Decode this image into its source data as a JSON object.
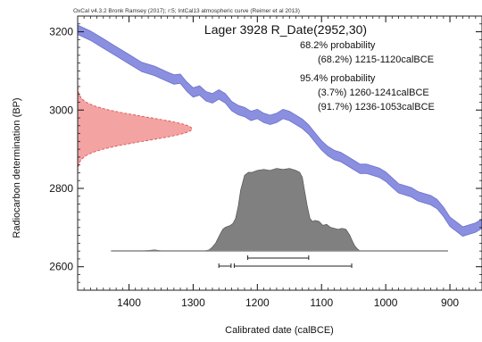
{
  "header": "OxCal v4.3.2 Bronk Ramsey (2017); r:5; IntCal13 atmospheric curve (Reimer et al 2013)",
  "chart_data": {
    "type": "area",
    "title": "Lager 3928 R_Date(2952,30)",
    "xlabel": "Calibrated date (calBCE)",
    "ylabel": "Radiocarbon determination (BP)",
    "xlim": [
      1480,
      850
    ],
    "ylim": [
      2540,
      3240
    ],
    "xticks": [
      1400,
      1300,
      1200,
      1100,
      1000,
      900
    ],
    "xtick_labels": [
      "1400",
      "1300",
      "1200",
      "1100",
      "1000",
      "900"
    ],
    "yticks": [
      2600,
      2800,
      3000,
      3200
    ],
    "ytick_labels": [
      "2600",
      "2800",
      "3000",
      "3200"
    ],
    "probability_text": [
      "68.2% probability",
      "(68.2%) 1215-1120calBCE",
      "95.4% probability",
      "(3.7%) 1260-1241calBCE",
      "(91.7%) 1236-1053calBCE"
    ],
    "ranges_68": [
      [
        1215,
        1120
      ]
    ],
    "ranges_95": [
      [
        1260,
        1241
      ],
      [
        1236,
        1053
      ]
    ],
    "radiocarbon_date": {
      "mean": 2952,
      "sd": 30
    },
    "calibration_curve": {
      "name": "IntCal13",
      "x": [
        1480,
        1460,
        1440,
        1420,
        1400,
        1380,
        1360,
        1340,
        1330,
        1320,
        1310,
        1300,
        1290,
        1280,
        1270,
        1260,
        1250,
        1240,
        1230,
        1220,
        1210,
        1200,
        1190,
        1180,
        1170,
        1160,
        1150,
        1140,
        1130,
        1120,
        1110,
        1100,
        1090,
        1080,
        1070,
        1060,
        1050,
        1040,
        1030,
        1020,
        1010,
        1000,
        990,
        980,
        970,
        960,
        950,
        940,
        930,
        920,
        910,
        900,
        880,
        860,
        850
      ],
      "y": [
        3205,
        3190,
        3170,
        3150,
        3130,
        3110,
        3100,
        3085,
        3078,
        3080,
        3060,
        3045,
        3050,
        3035,
        3030,
        3040,
        3030,
        3010,
        3000,
        2995,
        2985,
        2990,
        2980,
        2975,
        2980,
        2990,
        2985,
        2975,
        2965,
        2950,
        2930,
        2910,
        2895,
        2885,
        2880,
        2870,
        2860,
        2850,
        2850,
        2845,
        2840,
        2830,
        2815,
        2800,
        2795,
        2790,
        2780,
        2775,
        2770,
        2760,
        2740,
        2715,
        2690,
        2700,
        2710
      ],
      "sigma": 12,
      "color": "#8a8fe0"
    },
    "measurement_distribution": {
      "color": "#f4a3a3",
      "edge_color": "#d9534f"
    },
    "posterior_distribution": {
      "color": "#808080",
      "x": [
        1428,
        1380,
        1368,
        1360,
        1350,
        1330,
        1300,
        1282,
        1275,
        1270,
        1265,
        1262,
        1258,
        1254,
        1250,
        1246,
        1242,
        1238,
        1234,
        1230,
        1226,
        1220,
        1214,
        1208,
        1200,
        1190,
        1180,
        1170,
        1160,
        1150,
        1140,
        1134,
        1130,
        1126,
        1122,
        1118,
        1114,
        1110,
        1104,
        1098,
        1092,
        1086,
        1080,
        1074,
        1068,
        1062,
        1056,
        1052,
        1048,
        1044,
        1040,
        1030,
        1020,
        1010,
        990,
        960,
        920,
        903
      ],
      "density": [
        0,
        0,
        0.006,
        0.01,
        0.002,
        0,
        0,
        0.002,
        0.01,
        0.04,
        0.08,
        0.12,
        0.17,
        0.22,
        0.24,
        0.25,
        0.26,
        0.28,
        0.33,
        0.45,
        0.62,
        0.77,
        0.8,
        0.8,
        0.82,
        0.83,
        0.82,
        0.84,
        0.83,
        0.84,
        0.82,
        0.8,
        0.75,
        0.6,
        0.45,
        0.33,
        0.3,
        0.31,
        0.3,
        0.26,
        0.27,
        0.24,
        0.23,
        0.22,
        0.23,
        0.22,
        0.16,
        0.1,
        0.05,
        0.02,
        0,
        0,
        0,
        0,
        0,
        0,
        0,
        0
      ]
    }
  }
}
